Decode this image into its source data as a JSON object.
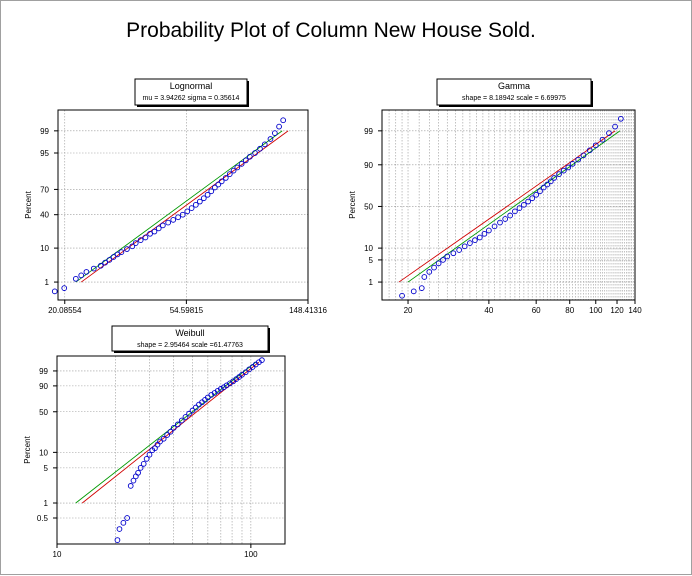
{
  "title": "Probability Plot of Column New House Sold.",
  "colors": {
    "points": "#0000cc",
    "fit_line": "#d00000",
    "ref_line": "#009900",
    "grid": "#9a9a9a"
  },
  "chart_data": [
    {
      "type": "scatter",
      "name": "Lognormal",
      "params": "mu = 3.94262  sigma = 0.35614",
      "ylabel": "Percent",
      "xscale": "log",
      "xlim": [
        19,
        148.41316
      ],
      "x_ticks": [
        {
          "value": 20.08554,
          "label": "20.08554"
        },
        {
          "value": 54.59815,
          "label": "54.59815"
        },
        {
          "value": 148.41316,
          "label": "148.41316"
        }
      ],
      "x_grid": [
        20.08554,
        54.59815,
        148.41316
      ],
      "yscale": "normal-probability",
      "ylim": [
        0.2,
        99.85
      ],
      "y_ticks": [
        1,
        10,
        40,
        70,
        95,
        99
      ],
      "y_grid": [
        1,
        10,
        40,
        70,
        95,
        99
      ],
      "fit_line": {
        "x": [
          23.0,
          126.0
        ],
        "y": [
          1,
          99
        ]
      },
      "ref_line": {
        "x": [
          22.0,
          120.0
        ],
        "y": [
          1,
          99
        ]
      },
      "series": [
        {
          "x": [
            18.5,
            20.0,
            22.0,
            23.0,
            24.0,
            25.5,
            27.0,
            28.0,
            29.0,
            30.0,
            31.0,
            32.0,
            33.5,
            35.0,
            36.0,
            37.5,
            39.0,
            40.5,
            42.0,
            43.5,
            45.0,
            47.0,
            49.0,
            51.0,
            53.0,
            55.0,
            57.0,
            59.0,
            61.0,
            63.0,
            65.0,
            67.0,
            69.0,
            71.0,
            73.0,
            75.5,
            78.0,
            80.5,
            83.0,
            86.0,
            89.0,
            92.0,
            96.0,
            100.0,
            104.0,
            109.0,
            113.0,
            117.0,
            121.0
          ],
          "y": [
            0.45,
            0.6,
            1.3,
            1.7,
            2.2,
            2.8,
            3.4,
            4.2,
            5.0,
            6.0,
            7.0,
            8.0,
            9.5,
            11,
            13,
            15,
            17,
            20,
            22,
            25,
            28,
            31,
            34,
            37,
            40,
            44,
            48,
            52,
            56,
            60,
            64,
            68,
            72,
            75,
            78,
            81,
            84,
            86.5,
            88.5,
            90.5,
            92.2,
            93.7,
            95.0,
            96.2,
            97.2,
            98.1,
            98.8,
            99.3,
            99.6
          ]
        }
      ]
    },
    {
      "type": "scatter",
      "name": "Gamma",
      "params": "shape = 8.18942  scale = 6.69975",
      "ylabel": "Percent",
      "xscale": "log",
      "xlim": [
        16,
        140
      ],
      "x_ticks": [
        {
          "value": 20,
          "label": "20"
        },
        {
          "value": 40,
          "label": "40"
        },
        {
          "value": 60,
          "label": "60"
        },
        {
          "value": 80,
          "label": "80"
        },
        {
          "value": 100,
          "label": "100"
        },
        {
          "value": 120,
          "label": "120"
        },
        {
          "value": 140,
          "label": "140"
        }
      ],
      "x_grid": [
        17,
        18,
        19,
        20,
        22,
        24,
        26,
        28,
        30,
        32,
        34,
        36,
        38,
        40,
        42,
        44,
        46,
        48,
        50,
        52,
        54,
        56,
        58,
        60,
        62,
        64,
        66,
        68,
        70,
        72,
        74,
        76,
        78,
        80,
        82,
        84,
        86,
        88,
        90,
        92,
        94,
        96,
        98,
        100,
        102,
        104,
        106,
        108,
        110,
        112,
        114,
        116,
        118,
        120,
        122,
        124,
        126,
        128,
        130,
        132,
        134,
        136,
        138,
        140
      ],
      "yscale": "normal-probability",
      "ylim": [
        0.2,
        99.85
      ],
      "y_ticks": [
        1,
        5,
        10,
        50,
        90,
        99
      ],
      "y_grid": [
        1,
        5,
        10,
        50,
        90,
        99
      ],
      "fit_line": {
        "x": [
          18.5,
          118.0
        ],
        "y": [
          1,
          99
        ]
      },
      "ref_line": {
        "x": [
          20.0,
          123.0
        ],
        "y": [
          1,
          99
        ]
      },
      "series": [
        {
          "x": [
            19.0,
            21.0,
            22.5,
            23.0,
            24.0,
            25.0,
            26.0,
            27.0,
            28.0,
            29.5,
            31.0,
            32.5,
            34.0,
            35.5,
            37.0,
            38.5,
            40.0,
            42.0,
            44.0,
            46.0,
            48.0,
            50.0,
            52.0,
            54.0,
            56.0,
            58.0,
            60.0,
            62.0,
            64.0,
            66.0,
            68.0,
            70.0,
            73.0,
            76.0,
            79.0,
            82.0,
            86.0,
            90.0,
            95.0,
            100.0,
            106.0,
            112.0,
            118.0,
            124.0
          ],
          "y": [
            0.3,
            0.45,
            0.6,
            1.5,
            2.2,
            3.0,
            4.0,
            5.0,
            6.2,
            7.5,
            9.0,
            11,
            13,
            15,
            17,
            20,
            23,
            27,
            31,
            35,
            39,
            44,
            48,
            52,
            56,
            60,
            64,
            68,
            72,
            75,
            78,
            81,
            84,
            86.5,
            88.5,
            90.5,
            92.5,
            94.2,
            95.8,
            97.0,
            98.0,
            98.8,
            99.3,
            99.65
          ]
        }
      ]
    },
    {
      "type": "scatter",
      "name": "Weibull",
      "params": "shape = 2.95464  scale =61.47763",
      "ylabel": "Percent",
      "xscale": "log",
      "xlim": [
        10,
        150
      ],
      "x_ticks": [
        {
          "value": 10,
          "label": "10"
        },
        {
          "value": 100,
          "label": "100"
        }
      ],
      "x_grid": [
        10,
        20,
        30,
        40,
        50,
        60,
        70,
        80,
        90,
        100
      ],
      "yscale": "weibull-probability",
      "ylim": [
        0.15,
        99.99
      ],
      "y_ticks": [
        0.5,
        1,
        5,
        10,
        50,
        90,
        99
      ],
      "y_grid": [
        0.5,
        1,
        5,
        10,
        50,
        90,
        99
      ],
      "fit_line": {
        "x": [
          13.5,
          110.0
        ],
        "y": [
          1,
          99.9
        ]
      },
      "ref_line": {
        "x": [
          12.5,
          106.0
        ],
        "y": [
          1,
          99.9
        ]
      },
      "series": [
        {
          "x": [
            20.5,
            21.0,
            22.0,
            23.0,
            24.0,
            24.8,
            25.5,
            26.2,
            27.0,
            28.0,
            29.0,
            30.0,
            31.0,
            32.0,
            33.0,
            34.0,
            35.5,
            37.0,
            38.5,
            40.0,
            42.0,
            44.0,
            46.0,
            48.0,
            50.0,
            52.0,
            54.0,
            56.0,
            58.0,
            60.0,
            62.5,
            65.0,
            67.5,
            70.0,
            72.5,
            75.0,
            78.0,
            81.0,
            84.0,
            87.0,
            90.0,
            94.0,
            98.0,
            102.0,
            106.0,
            110.0,
            114.0
          ],
          "y": [
            0.18,
            0.3,
            0.4,
            0.5,
            2.2,
            2.8,
            3.4,
            4.0,
            5.0,
            6.0,
            7.5,
            9.0,
            11,
            12,
            14,
            16,
            18,
            21,
            24,
            28,
            32,
            37,
            42,
            47,
            52,
            57,
            62,
            66,
            70,
            74,
            78,
            81,
            84,
            86.5,
            88.5,
            90.5,
            92.5,
            94.2,
            95.7,
            96.9,
            97.9,
            98.7,
            99.3,
            99.6,
            99.8,
            99.9,
            99.95
          ]
        }
      ]
    }
  ]
}
